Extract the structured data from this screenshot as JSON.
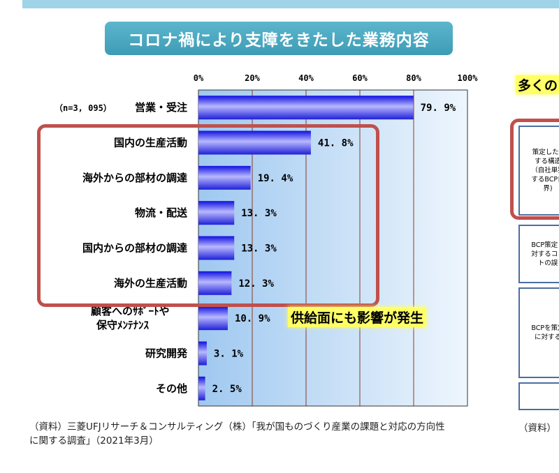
{
  "title": "コロナ禍により支障をきたした業務内容",
  "chart_data": {
    "type": "bar",
    "orientation": "horizontal",
    "sample_note": "（n=3, 095）",
    "categories": [
      "営業・受注",
      "国内の生産活動",
      "海外からの部材の調達",
      "物流・配送",
      "国内からの部材の調達",
      "海外の生産活動",
      "顧客へのｻﾎﾟｰﾄや\n保守ﾒﾝﾃﾅﾝｽ",
      "研究開発",
      "その他"
    ],
    "values": [
      79.9,
      41.8,
      19.4,
      13.3,
      13.3,
      12.3,
      10.9,
      3.1,
      2.5
    ],
    "value_labels": [
      "79. 9%",
      "41. 8%",
      "19. 4%",
      "13. 3%",
      "13. 3%",
      "12. 3%",
      "10. 9%",
      "3. 1%",
      "2. 5%"
    ],
    "xlim": [
      0,
      100
    ],
    "xticks": [
      "0%",
      "20%",
      "40%",
      "60%",
      "80%",
      "100%"
    ],
    "grid": true,
    "bar_color": "#2020e0",
    "highlight_color": "#c0504d"
  },
  "annotation": "供給面にも影響が発生",
  "source": "（資料）三菱UFJリサーチ＆コンサルティング（株）「我が国ものづくり産業の課題と対応の方向性\nに関する調査」（2021年3月）",
  "right_panel": {
    "heading": "多くの",
    "boxes": [
      "策定したB\nする構造\n（自社単独\nするBCP自\n界)",
      "BCP策定・\n対するコミ\nトの誤",
      "BCPを策定\nに対する",
      ""
    ],
    "source": "（資料）"
  }
}
